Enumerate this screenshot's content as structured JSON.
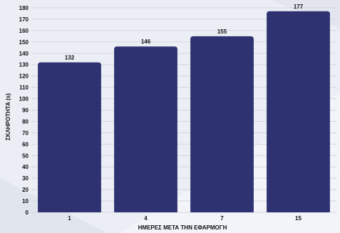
{
  "chart_data": {
    "type": "bar",
    "title": "",
    "xlabel": "ΗΜΕΡΕΣ ΜΕΤΑ ΤΗΝ ΕΦΑΡΜΟΓΗ",
    "ylabel": "ΣΚΛΗΡΟΤΗΤΑ (s)",
    "categories": [
      "1",
      "4",
      "7",
      "15"
    ],
    "values": [
      132,
      146,
      155,
      177
    ],
    "ylim": [
      0,
      180
    ],
    "ytick_step": 10,
    "yticks": [
      "0",
      "10",
      "20",
      "30",
      "40",
      "50",
      "60",
      "70",
      "80",
      "90",
      "100",
      "110",
      "120",
      "130",
      "140",
      "150",
      "160",
      "170",
      "180"
    ],
    "grid": true,
    "legend": "none",
    "colors": {
      "bar": "#2e3270",
      "grid": "#d4d6de",
      "text": "#111111",
      "background": "#eceef5",
      "stripe_light": "#f8f9fc",
      "stripe_dark": "#dfe2ec"
    }
  }
}
